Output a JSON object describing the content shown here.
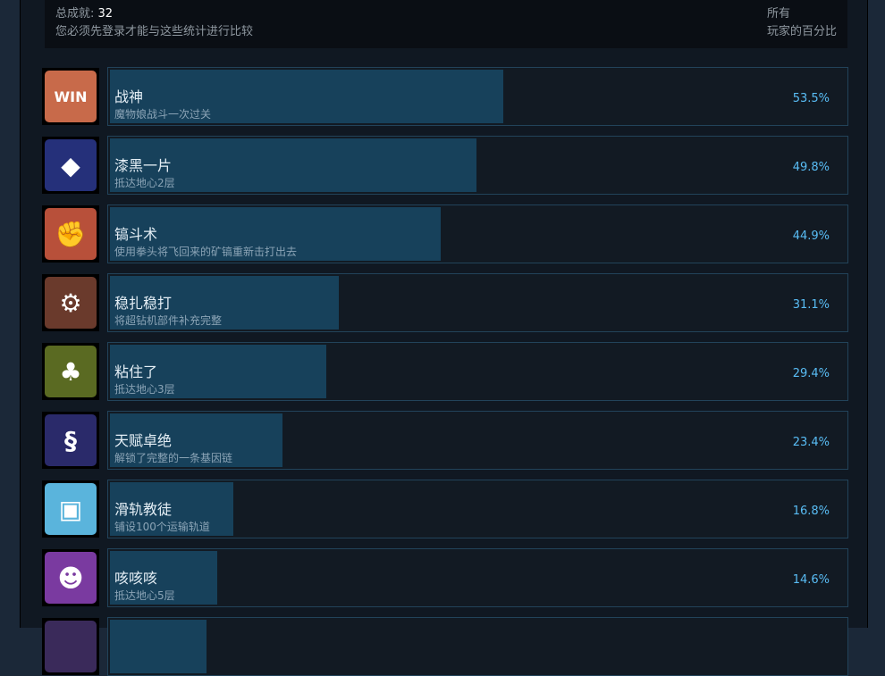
{
  "header": {
    "total_label": "总成就:",
    "total_count": "32",
    "login_note": "您必须先登录才能与这些统计进行比较",
    "right_line1": "所有",
    "right_line2": "玩家的百分比"
  },
  "achievements": [
    {
      "name": "战神",
      "desc": "魔物娘战斗一次过关",
      "percent": "53.5%",
      "value": 53.5,
      "icon": "win-icon",
      "color": "#c86a4a",
      "glyph": "WIN"
    },
    {
      "name": "漆黑一片",
      "desc": "抵达地心2层",
      "percent": "49.8%",
      "value": 49.8,
      "icon": "dark-rock-icon",
      "color": "#25307a",
      "glyph": "◆"
    },
    {
      "name": "镐斗术",
      "desc": "使用拳头将飞回来的矿镐重新击打出去",
      "percent": "44.9%",
      "value": 44.9,
      "icon": "fist-icon",
      "color": "#b8503a",
      "glyph": "✊"
    },
    {
      "name": "稳扎稳打",
      "desc": "将超钻机部件补充完整",
      "percent": "31.1%",
      "value": 31.1,
      "icon": "drill-icon",
      "color": "#6a3a2c",
      "glyph": "⚙"
    },
    {
      "name": "粘住了",
      "desc": "抵达地心3层",
      "percent": "29.4%",
      "value": 29.4,
      "icon": "swamp-icon",
      "color": "#5a6a22",
      "glyph": "♣"
    },
    {
      "name": "天赋卓绝",
      "desc": "解锁了完整的一条基因链",
      "percent": "23.4%",
      "value": 23.4,
      "icon": "dna-icon",
      "color": "#2a2a6a",
      "glyph": "§"
    },
    {
      "name": "滑轨教徒",
      "desc": "铺设100个运输轨道",
      "percent": "16.8%",
      "value": 16.8,
      "icon": "rail-icon",
      "color": "#5ab4dc",
      "glyph": "▣"
    },
    {
      "name": "咳咳咳",
      "desc": "抵达地心5层",
      "percent": "14.6%",
      "value": 14.6,
      "icon": "monster-icon",
      "color": "#7a3aa0",
      "glyph": "☻"
    },
    {
      "name": "",
      "desc": "",
      "percent": "",
      "value": 13.1,
      "icon": "partial-icon",
      "color": "#3a2a5a",
      "glyph": ""
    }
  ]
}
